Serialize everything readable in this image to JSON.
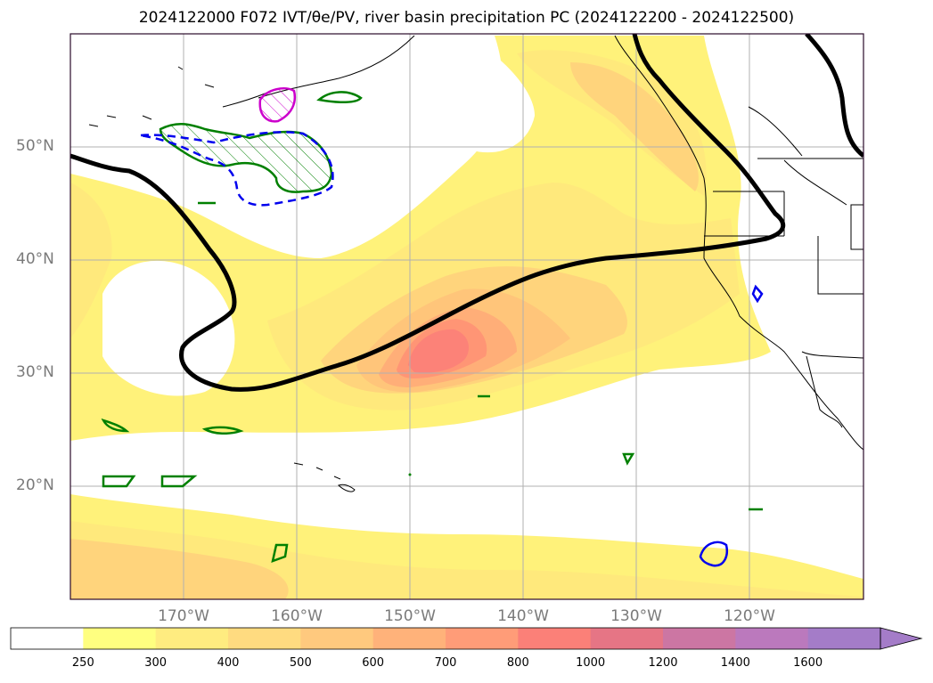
{
  "title": "2024122000 F072 IVT/θe/PV, river basin precipitation PC (2024122200 - 2024122500)",
  "map": {
    "projection": "PlateCarree",
    "lon_range": [
      -180,
      -110
    ],
    "lat_range": [
      10,
      60
    ],
    "lat_labels": [
      "50°N",
      "40°N",
      "30°N",
      "20°N"
    ],
    "lon_labels": [
      "170°W",
      "160°W",
      "150°W",
      "140°W",
      "130°W",
      "120°W"
    ],
    "grid": true,
    "colors": {
      "ivt_250": "#fff27a",
      "ivt_300": "#ffe97c",
      "ivt_400": "#ffd47c",
      "ivt_500": "#ffc57a",
      "ivt_600": "#ffae78",
      "ivt_700": "#ff9575",
      "ivt_800": "#fc8278",
      "theta_e_contour": "#000000",
      "pv_positive": "#008000",
      "pv_negative": "#0000ee",
      "magenta_contour": "#cc00cc",
      "coastline": "#000000"
    }
  },
  "colorbar": {
    "ticks": [
      "250",
      "300",
      "400",
      "500",
      "600",
      "700",
      "800",
      "1000",
      "1200",
      "1400",
      "1600"
    ],
    "colors": [
      "#ffffff",
      "#ffff80",
      "#ffec80",
      "#ffdb80",
      "#ffc97e",
      "#ffb27a",
      "#ff9c78",
      "#fb8078",
      "#e67585",
      "#cc76a3",
      "#bb79bd",
      "#a47cc8"
    ],
    "extend": "max"
  }
}
